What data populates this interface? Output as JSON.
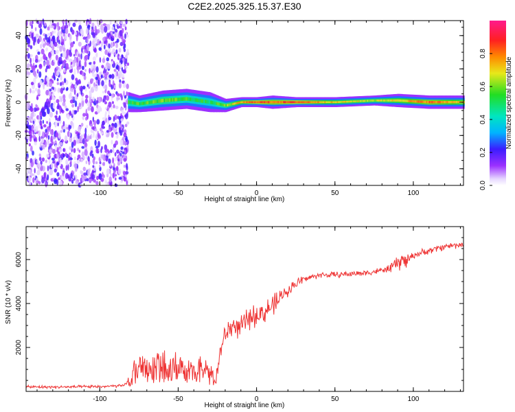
{
  "title": "C2E2.2025.325.15.37.E30",
  "chart_data": [
    {
      "type": "heatmap",
      "name": "spectrogram",
      "xlabel": "Height of straight line (km)",
      "ylabel": "Frequency (Hz)",
      "xlim": [
        -147,
        132
      ],
      "ylim": [
        -50,
        49
      ],
      "xticks": [
        -100,
        -50,
        0,
        50,
        100
      ],
      "yticks": [
        -40,
        -20,
        0,
        20,
        40
      ],
      "colorbar": {
        "label": "Normalized spectral amplitude",
        "range": [
          0.0,
          1.0
        ],
        "ticks": [
          0.0,
          0.2,
          0.4,
          0.6,
          0.8
        ],
        "tick_labels": [
          "0.0",
          "0.2",
          "0.4",
          "0.6",
          "0.8"
        ]
      },
      "noise_region": {
        "x_from": -147,
        "x_to": -82,
        "y_from": -50,
        "y_to": 49
      },
      "signal_band": [
        {
          "x": -82,
          "center": 0,
          "halfwidth": 6,
          "amp": 0.55
        },
        {
          "x": -75,
          "center": -1,
          "halfwidth": 5,
          "amp": 0.55
        },
        {
          "x": -60,
          "center": 1,
          "halfwidth": 6,
          "amp": 0.6
        },
        {
          "x": -45,
          "center": 2,
          "halfwidth": 6,
          "amp": 0.55
        },
        {
          "x": -30,
          "center": 0,
          "halfwidth": 6,
          "amp": 0.5
        },
        {
          "x": -20,
          "center": -2,
          "halfwidth": 4,
          "amp": 0.6
        },
        {
          "x": -10,
          "center": 0,
          "halfwidth": 3,
          "amp": 0.75
        },
        {
          "x": 0,
          "center": 0,
          "halfwidth": 3,
          "amp": 0.85
        },
        {
          "x": 10,
          "center": 0,
          "halfwidth": 4,
          "amp": 0.8
        },
        {
          "x": 25,
          "center": 0,
          "halfwidth": 3,
          "amp": 0.85
        },
        {
          "x": 50,
          "center": 0,
          "halfwidth": 3,
          "amp": 0.7
        },
        {
          "x": 75,
          "center": 1,
          "halfwidth": 3,
          "amp": 0.65
        },
        {
          "x": 90,
          "center": 1,
          "halfwidth": 4,
          "amp": 0.7
        },
        {
          "x": 110,
          "center": 0,
          "halfwidth": 4,
          "amp": 0.8
        },
        {
          "x": 132,
          "center": 0,
          "halfwidth": 4,
          "amp": 0.7
        }
      ]
    },
    {
      "type": "line",
      "name": "snr",
      "xlabel": "Height of straight line (km)",
      "ylabel": "SNR (10 * v/v)",
      "xlim": [
        -147,
        132
      ],
      "ylim": [
        0,
        7500
      ],
      "xticks": [
        -100,
        -50,
        0,
        50,
        100
      ],
      "yticks": [
        2000,
        4000,
        6000
      ],
      "color": "#ee3333",
      "series": [
        {
          "name": "SNR",
          "x": [
            -147,
            -120,
            -100,
            -85,
            -80,
            -75,
            -70,
            -65,
            -60,
            -55,
            -50,
            -45,
            -40,
            -35,
            -30,
            -26,
            -22,
            -18,
            -15,
            -10,
            -5,
            0,
            5,
            10,
            13,
            15,
            20,
            25,
            30,
            40,
            50,
            60,
            70,
            80,
            85,
            90,
            93,
            95,
            100,
            110,
            120,
            132
          ],
          "y": [
            200,
            200,
            220,
            250,
            600,
            1300,
            1100,
            1200,
            1400,
            1300,
            1200,
            1100,
            1000,
            1100,
            900,
            600,
            2200,
            2800,
            3000,
            2900,
            3300,
            3500,
            3600,
            3900,
            4000,
            4300,
            4600,
            4900,
            5100,
            5300,
            5300,
            5350,
            5400,
            5500,
            5600,
            5800,
            6000,
            5900,
            6200,
            6400,
            6600,
            6700
          ]
        }
      ]
    }
  ]
}
